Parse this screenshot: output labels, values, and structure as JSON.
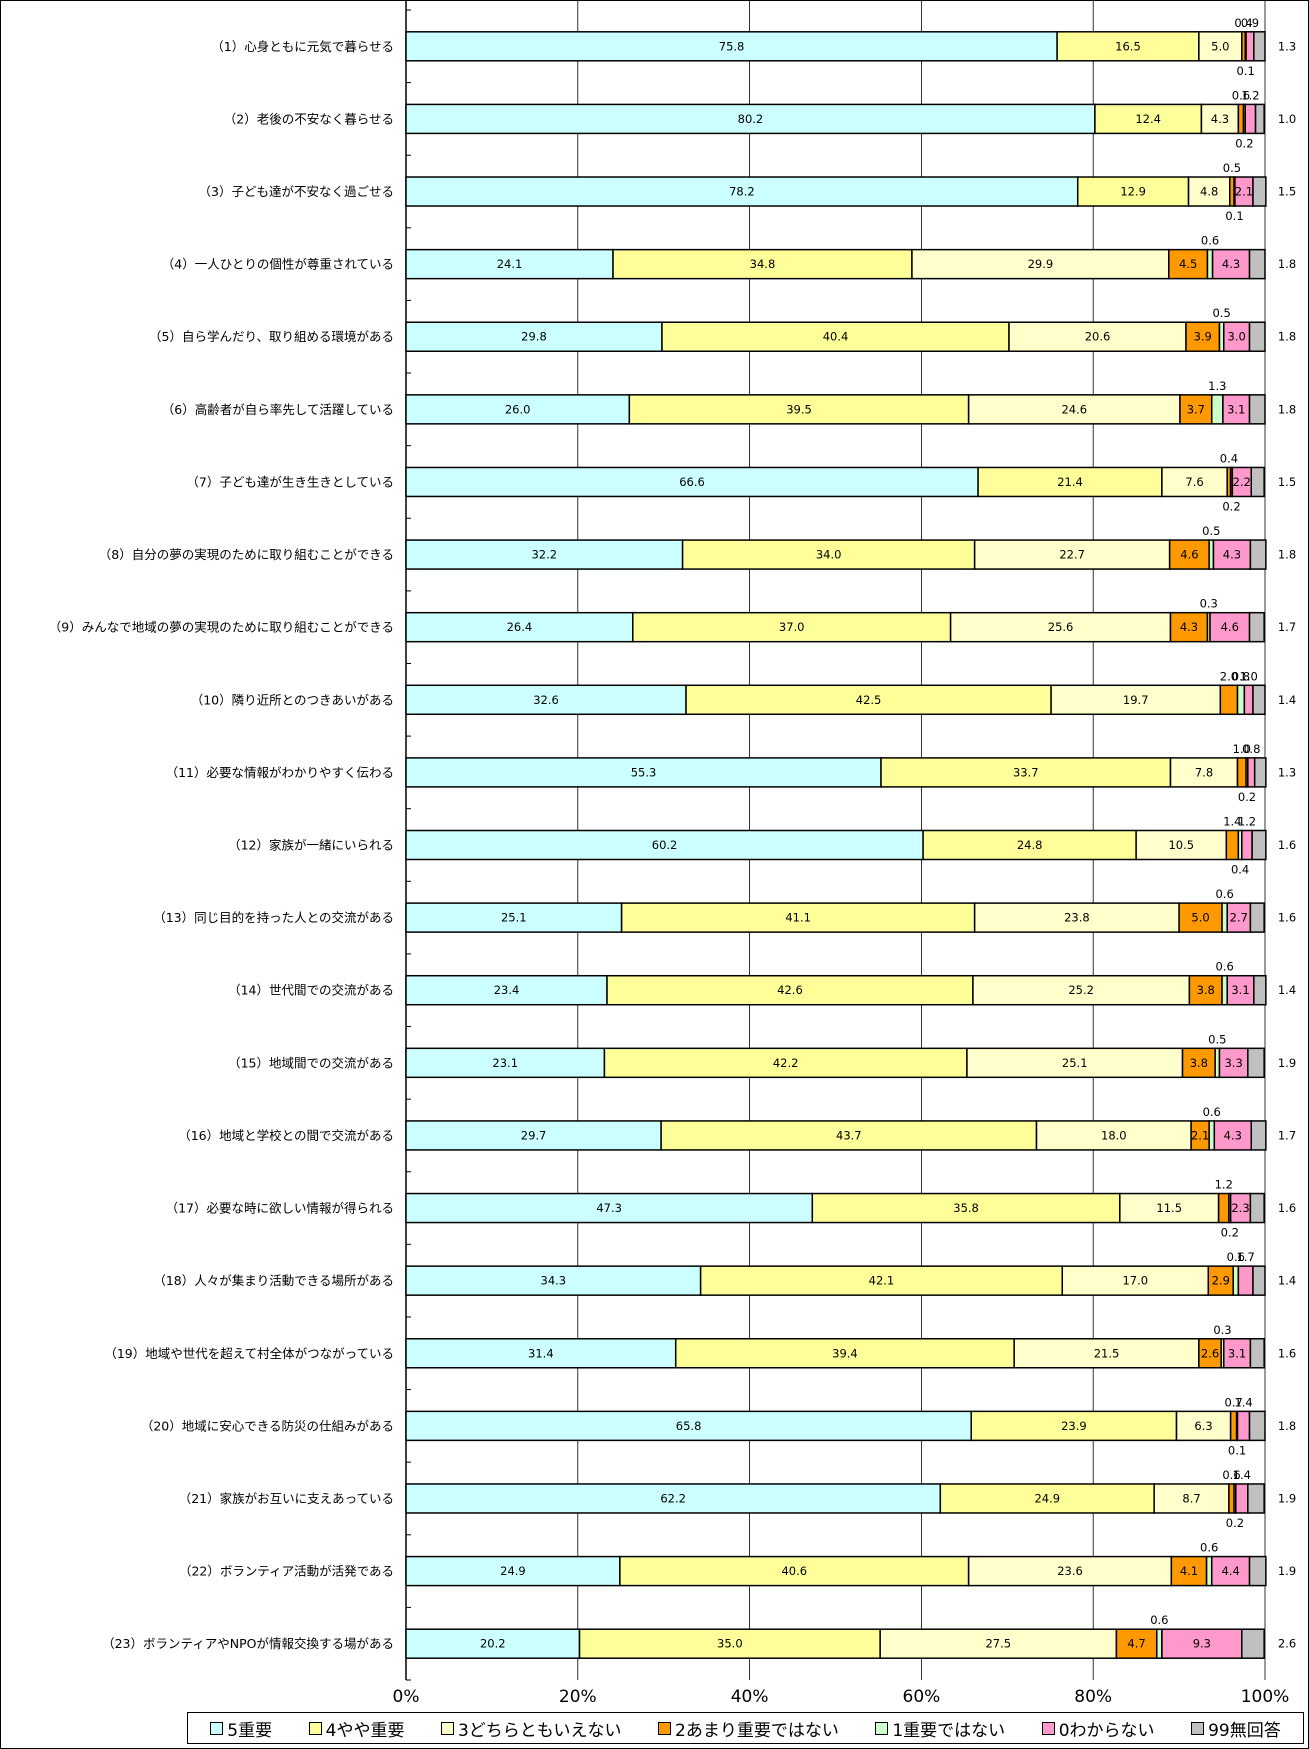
{
  "chart_data": {
    "type": "bar",
    "orientation": "horizontal",
    "stacked": true,
    "normalized": true,
    "categories": [
      "（1）心身ともに元気で暮らせる",
      "（2）老後の不安なく暮らせる",
      "（3）子ども達が不安なく過ごせる",
      "（4）一人ひとりの個性が尊重されている",
      "（5）自ら学んだり、取り組める環境がある",
      "（6）高齢者が自ら率先して活躍している",
      "（7）子ども達が生き生きとしている",
      "（8）自分の夢の実現のために取り組むことができる",
      "（9）みんなで地域の夢の実現のために取り組むことができる",
      "（10）隣り近所とのつきあいがある",
      "（11）必要な情報がわかりやすく伝わる",
      "（12）家族が一緒にいられる",
      "（13）同じ目的を持った人との交流がある",
      "（14）世代間での交流がある",
      "（15）地域間での交流がある",
      "（16）地域と学校との間で交流がある",
      "（17）必要な時に欲しい情報が得られる",
      "（18）人々が集まり活動できる場所がある",
      "（19）地域や世代を超えて村全体がつながっている",
      "（20）地域に安心できる防災の仕組みがある",
      "（21）家族がお互いに支えあっている",
      "（22）ボランティア活動が活発である",
      "（23）ボランティアやNPOが情報交換する場がある"
    ],
    "series": [
      {
        "name": "5重要",
        "color": "#ccffff",
        "values": [
          75.8,
          80.2,
          78.2,
          24.1,
          29.8,
          26.0,
          66.6,
          32.2,
          26.4,
          32.6,
          55.3,
          60.2,
          25.1,
          23.4,
          23.1,
          29.7,
          47.3,
          34.3,
          31.4,
          65.8,
          62.2,
          24.9,
          20.2
        ]
      },
      {
        "name": "4やや重要",
        "color": "#ffff99",
        "values": [
          16.5,
          12.4,
          12.9,
          34.8,
          40.4,
          39.5,
          21.4,
          34.0,
          37.0,
          42.5,
          33.7,
          24.8,
          41.1,
          42.6,
          42.2,
          43.7,
          35.8,
          42.1,
          39.4,
          23.9,
          24.9,
          40.6,
          35.0
        ]
      },
      {
        "name": "3どちらともいえない",
        "color": "#ffffcc",
        "values": [
          5.0,
          4.3,
          4.8,
          29.9,
          20.6,
          24.6,
          7.6,
          22.7,
          25.6,
          19.7,
          7.8,
          10.5,
          23.8,
          25.2,
          25.1,
          18.0,
          11.5,
          17.0,
          21.5,
          6.3,
          8.7,
          23.6,
          27.5
        ]
      },
      {
        "name": "2あまり重要ではない",
        "color": "#ff9900",
        "values": [
          0.4,
          0.6,
          0.5,
          4.5,
          3.9,
          3.7,
          0.4,
          4.6,
          4.3,
          2.0,
          1.0,
          1.4,
          5.0,
          3.8,
          3.8,
          2.1,
          1.2,
          2.9,
          2.6,
          0.7,
          0.6,
          4.1,
          4.7
        ]
      },
      {
        "name": "1重要ではない",
        "color": "#ccffcc",
        "values": [
          0.1,
          0.2,
          0.1,
          0.6,
          0.5,
          1.3,
          0.2,
          0.5,
          0.3,
          0.8,
          0.2,
          0.4,
          0.6,
          0.6,
          0.5,
          0.6,
          0.2,
          0.6,
          0.3,
          0.1,
          0.2,
          0.6,
          0.6
        ]
      },
      {
        "name": "0わからない",
        "color": "#ff99cc",
        "values": [
          0.9,
          1.2,
          2.1,
          4.3,
          3.0,
          3.1,
          2.2,
          4.3,
          4.6,
          1.0,
          0.8,
          1.2,
          2.7,
          3.1,
          3.3,
          4.3,
          2.3,
          1.7,
          3.1,
          1.4,
          1.4,
          4.4,
          9.3
        ]
      },
      {
        "name": "99無回答",
        "color": "#c0c0c0",
        "values": [
          1.3,
          1.0,
          1.5,
          1.8,
          1.8,
          1.8,
          1.5,
          1.8,
          1.7,
          1.4,
          1.3,
          1.6,
          1.6,
          1.4,
          1.9,
          1.7,
          1.6,
          1.4,
          1.6,
          1.8,
          1.9,
          1.9,
          2.6
        ]
      }
    ],
    "xlim": [
      0,
      100
    ],
    "x_ticks": [
      "0%",
      "20%",
      "40%",
      "60%",
      "80%",
      "100%"
    ],
    "grid": true,
    "legend": "bottom"
  }
}
